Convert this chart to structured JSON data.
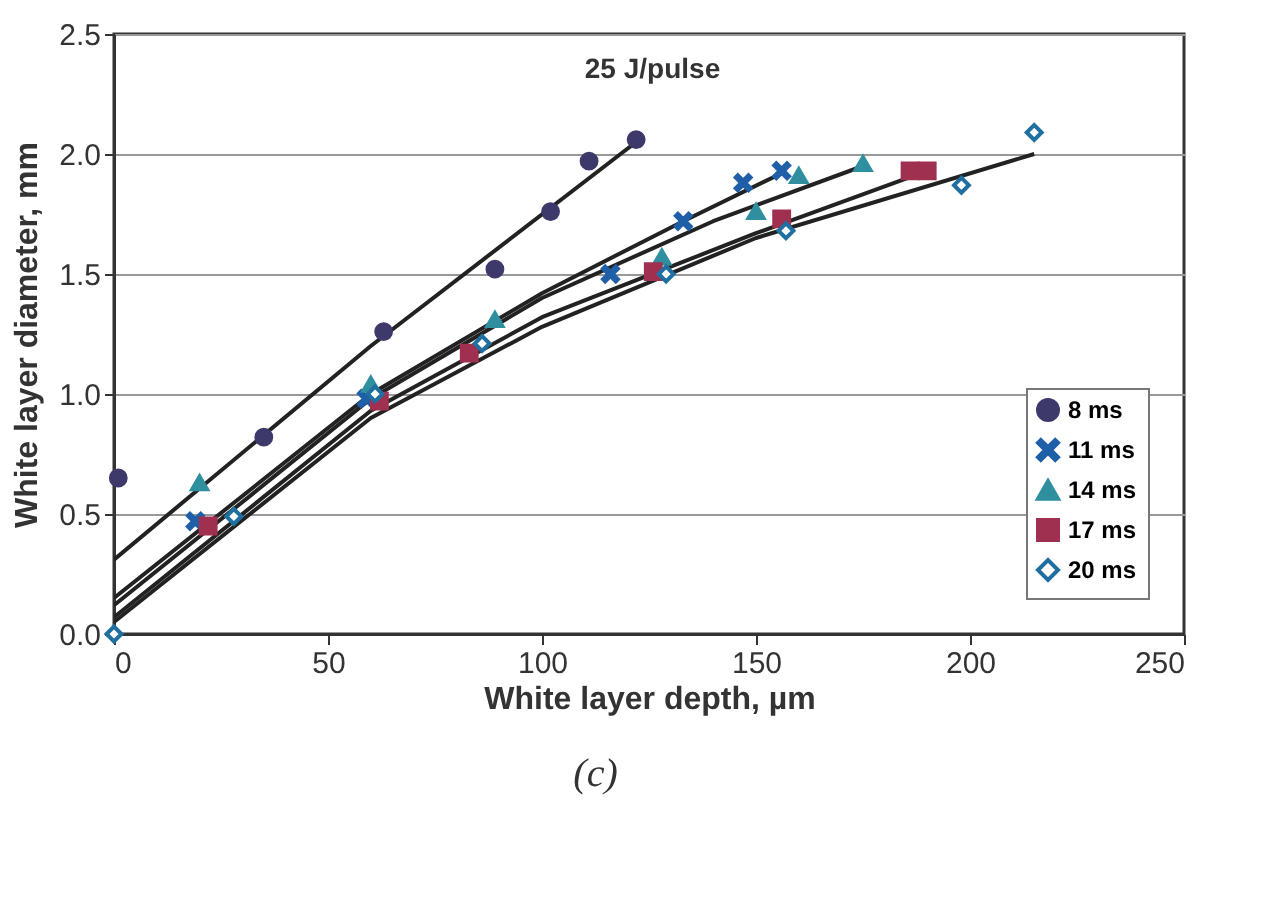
{
  "chart_data": {
    "type": "scatter",
    "xlabel": "White layer depth, µm",
    "ylabel": "White layer diameter, mm",
    "annotations": [
      "25 J/pulse",
      "(c)"
    ],
    "xlim": [
      0,
      250
    ],
    "xticks": [
      0,
      50,
      100,
      150,
      200,
      250
    ],
    "ylim": [
      0,
      2.5
    ],
    "yticks": [
      {
        "value": 0,
        "label": "0.0"
      },
      {
        "value": 0.5,
        "label": "0.5"
      },
      {
        "value": 1,
        "label": "1.0"
      },
      {
        "value": 1.5,
        "label": "1.5"
      },
      {
        "value": 2,
        "label": "2.0"
      },
      {
        "value": 2.5,
        "label": "2.5"
      }
    ],
    "grid": "y",
    "legend": "bottom right",
    "series": [
      {
        "name": "8 ms",
        "color": "#3d3a6b",
        "marker": "circle",
        "x": [
          1,
          35,
          63,
          89,
          102,
          111,
          122
        ],
        "values": [
          0.65,
          0.82,
          1.26,
          1.52,
          1.76,
          1.97,
          2.06
        ]
      },
      {
        "name": "11 ms",
        "color": "#1f5fa8",
        "marker": "cross",
        "x": [
          19,
          59,
          116,
          133,
          147,
          156
        ],
        "values": [
          0.47,
          0.98,
          1.5,
          1.72,
          1.88,
          1.93
        ]
      },
      {
        "name": "14 ms",
        "color": "#2f8f9f",
        "marker": "triangle",
        "x": [
          20,
          60,
          89,
          128,
          150,
          160,
          175
        ],
        "values": [
          0.63,
          1.04,
          1.31,
          1.57,
          1.76,
          1.91,
          1.96
        ]
      },
      {
        "name": "17 ms",
        "color": "#a0304f",
        "marker": "square",
        "x": [
          22,
          62,
          83,
          126,
          156,
          186,
          190
        ],
        "values": [
          0.45,
          0.97,
          1.17,
          1.51,
          1.73,
          1.93,
          1.93
        ]
      },
      {
        "name": "20 ms",
        "color": "#1f6fa0",
        "marker": "diamond",
        "x": [
          0,
          28,
          61,
          86,
          129,
          157,
          198,
          215
        ],
        "values": [
          0,
          0.49,
          1.0,
          1.21,
          1.5,
          1.68,
          1.87,
          2.09
        ]
      },
      {
        "type": "line",
        "color": "#222222",
        "x": [
          0,
          60,
          122
        ],
        "values": [
          0.31,
          1.2,
          2.05
        ]
      },
      {
        "type": "line",
        "color": "#222222",
        "x": [
          0,
          60,
          100,
          133,
          156
        ],
        "values": [
          0.15,
          1.0,
          1.42,
          1.72,
          1.92
        ]
      },
      {
        "type": "line",
        "color": "#222222",
        "x": [
          0,
          60,
          100,
          140,
          175
        ],
        "values": [
          0.12,
          0.98,
          1.4,
          1.72,
          1.95
        ]
      },
      {
        "type": "line",
        "color": "#222222",
        "x": [
          0,
          60,
          100,
          150,
          190
        ],
        "values": [
          0.07,
          0.93,
          1.32,
          1.67,
          1.93
        ]
      },
      {
        "type": "line",
        "color": "#222222",
        "x": [
          0,
          60,
          100,
          150,
          215
        ],
        "values": [
          0.05,
          0.9,
          1.28,
          1.65,
          2.0
        ]
      }
    ]
  }
}
